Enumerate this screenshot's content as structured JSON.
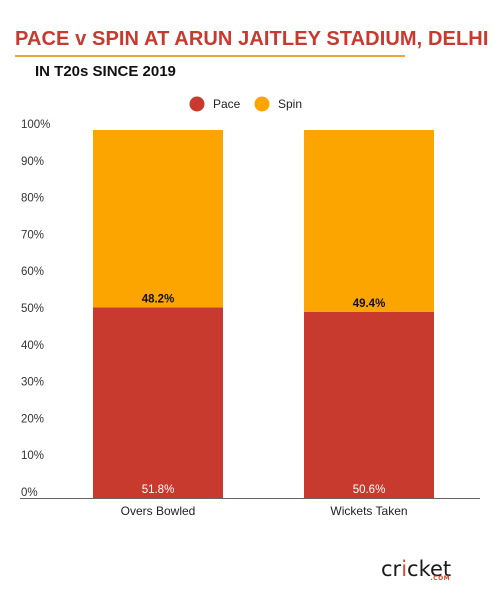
{
  "header": {
    "title": "PACE v SPIN AT ARUN JAITLEY STADIUM, DELHI",
    "subtitle": "IN T20s SINCE 2019"
  },
  "logo": {
    "text_before": "cr",
    "text_ball": "i",
    "text_after": "cket",
    "suffix": ".COM"
  },
  "colors": {
    "pace": "#c8392e",
    "spin": "#fca400",
    "title": "#c8392e",
    "rule": "#e9a63a"
  },
  "chart_data": {
    "type": "bar",
    "stacked": true,
    "categories": [
      "Overs Bowled",
      "Wickets Taken"
    ],
    "series": [
      {
        "name": "Pace",
        "values": [
          51.8,
          50.6
        ],
        "labels": [
          "51.8%",
          "50.6%"
        ]
      },
      {
        "name": "Spin",
        "values": [
          48.2,
          49.4
        ],
        "labels": [
          "48.2%",
          "49.4%"
        ]
      }
    ],
    "ylim": [
      0,
      100
    ],
    "yticks": [
      "0%",
      "10%",
      "20%",
      "30%",
      "40%",
      "50%",
      "60%",
      "70%",
      "80%",
      "90%",
      "100%"
    ],
    "legend": "top-center",
    "grid": false
  }
}
